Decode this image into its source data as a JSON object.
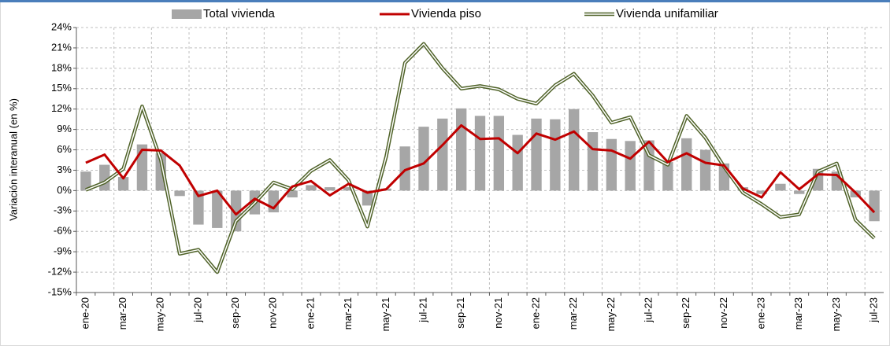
{
  "chart_data": {
    "type": "bar-line",
    "y_axis_label": "Variación interanual (en %)",
    "categories": [
      "ene-20",
      null,
      "mar-20",
      null,
      "may-20",
      null,
      "jul-20",
      null,
      "sep-20",
      null,
      "nov-20",
      null,
      "ene-21",
      null,
      "mar-21",
      null,
      "may-21",
      null,
      "jul-21",
      null,
      "sep-21",
      null,
      "nov-21",
      null,
      "ene-22",
      null,
      "mar-22",
      null,
      "may-22",
      null,
      "jul-22",
      null,
      "sep-22",
      null,
      "nov-22",
      null,
      "ene-23",
      null,
      "mar-23",
      null,
      "may-23",
      null,
      "jul-23"
    ],
    "series": [
      {
        "name": "Total vivienda",
        "type": "bar",
        "color": "#a6a6a6",
        "values": [
          2.8,
          3.8,
          2.0,
          6.8,
          5.5,
          -0.8,
          -5.0,
          -5.5,
          -6.0,
          -3.5,
          -3.2,
          -1.0,
          0.8,
          0.5,
          0.5,
          -2.2,
          0.3,
          6.5,
          9.4,
          10.6,
          12.1,
          11.0,
          11.0,
          8.2,
          10.6,
          10.5,
          12.0,
          8.6,
          7.6,
          7.3,
          7.4,
          4.2,
          7.7,
          6.0,
          4.0,
          0.5,
          -0.5,
          1.0,
          -0.5,
          3.2,
          2.8,
          -1.0,
          -4.5
        ]
      },
      {
        "name": "Vivienda piso",
        "type": "line",
        "color": "#c00000",
        "values": [
          4.1,
          5.3,
          1.8,
          6.0,
          5.9,
          3.7,
          -0.8,
          0.0,
          -3.5,
          -1.2,
          -2.6,
          0.6,
          1.4,
          -0.7,
          1.0,
          -0.3,
          0.2,
          3.0,
          4.0,
          6.7,
          9.6,
          7.6,
          7.7,
          5.5,
          8.4,
          7.5,
          8.7,
          6.1,
          5.9,
          4.7,
          7.2,
          4.2,
          5.5,
          4.1,
          3.7,
          0.3,
          -1.0,
          2.7,
          0.2,
          2.4,
          2.3,
          -0.3,
          -3.2
        ]
      },
      {
        "name": "Vivienda unifamiliar",
        "type": "double-line",
        "color": "#4f6228",
        "values": [
          0.1,
          1.2,
          3.2,
          12.4,
          4.5,
          -9.3,
          -8.7,
          -12.0,
          -4.5,
          -1.8,
          1.2,
          0.2,
          2.9,
          4.5,
          1.5,
          -5.3,
          5.0,
          18.8,
          21.6,
          18.0,
          15.0,
          15.4,
          14.9,
          13.5,
          12.8,
          15.5,
          17.2,
          14.0,
          10.0,
          10.8,
          5.2,
          3.8,
          11.0,
          7.8,
          3.5,
          -0.3,
          -2.0,
          -3.9,
          -3.5,
          2.8,
          4.0,
          -4.3,
          -7.0
        ]
      }
    ],
    "ylim": [
      -15,
      24
    ],
    "yticks": [
      {
        "value": -15,
        "label": "-15%"
      },
      {
        "value": -12,
        "label": "-12%"
      },
      {
        "value": -9,
        "label": "-9%"
      },
      {
        "value": -6,
        "label": "-6%"
      },
      {
        "value": -3,
        "label": "-3%"
      },
      {
        "value": 0,
        "label": "0%"
      },
      {
        "value": 3,
        "label": "3%"
      },
      {
        "value": 6,
        "label": "6%"
      },
      {
        "value": 9,
        "label": "9%"
      },
      {
        "value": 12,
        "label": "12%"
      },
      {
        "value": 15,
        "label": "15%"
      },
      {
        "value": 18,
        "label": "18%"
      },
      {
        "value": 21,
        "label": "21%"
      },
      {
        "value": 24,
        "label": "24%"
      }
    ],
    "grid": true,
    "legend": "top"
  }
}
